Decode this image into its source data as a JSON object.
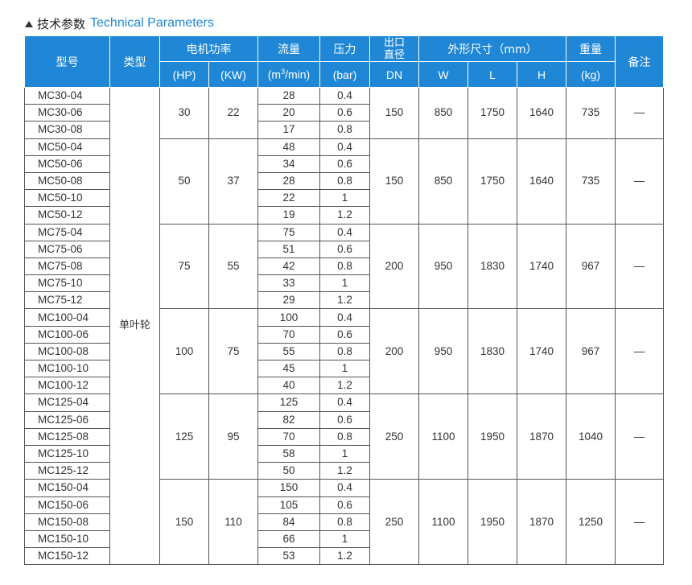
{
  "heading": {
    "cn": "技术参数",
    "en": "Technical Parameters"
  },
  "headers": {
    "model": "型号",
    "type": "类型",
    "motor_power": "电机功率",
    "flow": "流量",
    "pressure": "压力",
    "outlet_1": "出口",
    "outlet_2": "直径",
    "dimensions": "外形尺寸（mm）",
    "weight": "重量",
    "remarks": "备注",
    "hp": "(HP)",
    "kw": "(KW)",
    "flow_unit_a": "(m",
    "flow_unit_sup": "3",
    "flow_unit_b": "/min)",
    "bar": "(bar)",
    "dn": "DN",
    "w": "W",
    "l": "L",
    "h": "H",
    "kg": "(kg)"
  },
  "type_value": "单叶轮",
  "groups": [
    {
      "hp": "30",
      "kw": "22",
      "dn": "150",
      "w": "850",
      "l": "1750",
      "h": "1640",
      "kg": "735",
      "remark": "—",
      "rows": [
        [
          "MC30-04",
          "28",
          "0.4"
        ],
        [
          "MC30-06",
          "20",
          "0.6"
        ],
        [
          "MC30-08",
          "17",
          "0.8"
        ]
      ]
    },
    {
      "hp": "50",
      "kw": "37",
      "dn": "150",
      "w": "850",
      "l": "1750",
      "h": "1640",
      "kg": "735",
      "remark": "—",
      "rows": [
        [
          "MC50-04",
          "48",
          "0.4"
        ],
        [
          "MC50-06",
          "34",
          "0.6"
        ],
        [
          "MC50-08",
          "28",
          "0.8"
        ],
        [
          "MC50-10",
          "22",
          "1"
        ],
        [
          "MC50-12",
          "19",
          "1.2"
        ]
      ]
    },
    {
      "hp": "75",
      "kw": "55",
      "dn": "200",
      "w": "950",
      "l": "1830",
      "h": "1740",
      "kg": "967",
      "remark": "—",
      "rows": [
        [
          "MC75-04",
          "75",
          "0.4"
        ],
        [
          "MC75-06",
          "51",
          "0.6"
        ],
        [
          "MC75-08",
          "42",
          "0.8"
        ],
        [
          "MC75-10",
          "33",
          "1"
        ],
        [
          "MC75-12",
          "29",
          "1.2"
        ]
      ]
    },
    {
      "hp": "100",
      "kw": "75",
      "dn": "200",
      "w": "950",
      "l": "1830",
      "h": "1740",
      "kg": "967",
      "remark": "—",
      "rows": [
        [
          "MC100-04",
          "100",
          "0.4"
        ],
        [
          "MC100-06",
          "70",
          "0.6"
        ],
        [
          "MC100-08",
          "55",
          "0.8"
        ],
        [
          "MC100-10",
          "45",
          "1"
        ],
        [
          "MC100-12",
          "40",
          "1.2"
        ]
      ]
    },
    {
      "hp": "125",
      "kw": "95",
      "dn": "250",
      "w": "1100",
      "l": "1950",
      "h": "1870",
      "kg": "1040",
      "remark": "—",
      "rows": [
        [
          "MC125-04",
          "125",
          "0.4"
        ],
        [
          "MC125-06",
          "82",
          "0.6"
        ],
        [
          "MC125-08",
          "70",
          "0.8"
        ],
        [
          "MC125-10",
          "58",
          "1"
        ],
        [
          "MC125-12",
          "50",
          "1.2"
        ]
      ]
    },
    {
      "hp": "150",
      "kw": "110",
      "dn": "250",
      "w": "1100",
      "l": "1950",
      "h": "1870",
      "kg": "1250",
      "remark": "—",
      "rows": [
        [
          "MC150-04",
          "150",
          "0.4"
        ],
        [
          "MC150-06",
          "105",
          "0.6"
        ],
        [
          "MC150-08",
          "84",
          "0.8"
        ],
        [
          "MC150-10",
          "66",
          "1"
        ],
        [
          "MC150-12",
          "53",
          "1.2"
        ]
      ]
    }
  ]
}
